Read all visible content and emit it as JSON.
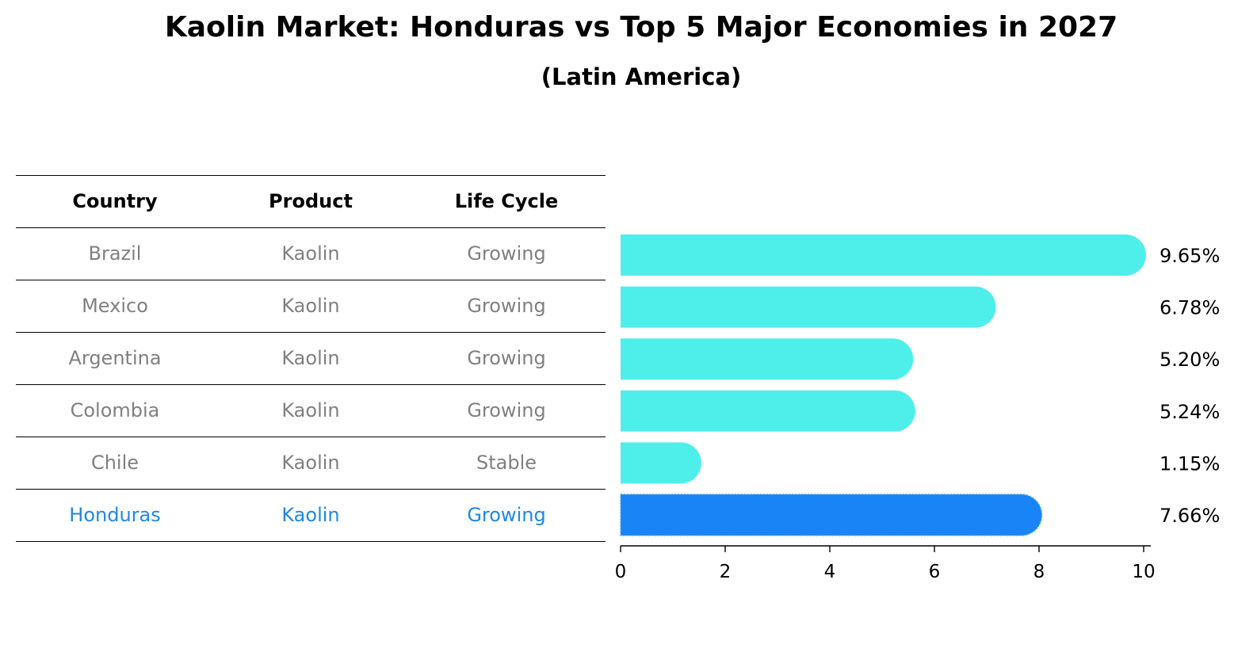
{
  "title": "Kaolin Market: Honduras vs Top 5 Major Economies in 2027",
  "subtitle": "(Latin America)",
  "table": {
    "headers": [
      "Country",
      "Product",
      "Life Cycle"
    ],
    "rows": [
      [
        "Brazil",
        "Kaolin",
        "Growing"
      ],
      [
        "Mexico",
        "Kaolin",
        "Growing"
      ],
      [
        "Argentina",
        "Kaolin",
        "Growing"
      ],
      [
        "Colombia",
        "Kaolin",
        "Growing"
      ],
      [
        "Chile",
        "Kaolin",
        "Stable"
      ],
      [
        "Honduras",
        "Kaolin",
        "Growing"
      ]
    ]
  },
  "colors": {
    "bar": "#4eeeea",
    "highlight_bar": "#1984f5",
    "highlight_text": "#1e88e5",
    "body_text": "#808080"
  },
  "chart_data": {
    "type": "bar",
    "orientation": "horizontal",
    "title": "Kaolin Market: Honduras vs Top 5 Major Economies in 2027",
    "subtitle": "(Latin America)",
    "categories": [
      "Brazil",
      "Mexico",
      "Argentina",
      "Colombia",
      "Chile",
      "Honduras"
    ],
    "values": [
      9.65,
      6.78,
      5.2,
      5.24,
      1.15,
      7.66
    ],
    "value_labels": [
      "9.65%",
      "6.78%",
      "5.20%",
      "5.24%",
      "1.15%",
      "7.66%"
    ],
    "highlight": "Honduras",
    "xlim": [
      0,
      10
    ],
    "xticks": [
      0,
      2,
      4,
      6,
      8,
      10
    ],
    "xlabel": "",
    "ylabel": "",
    "grid": false
  }
}
